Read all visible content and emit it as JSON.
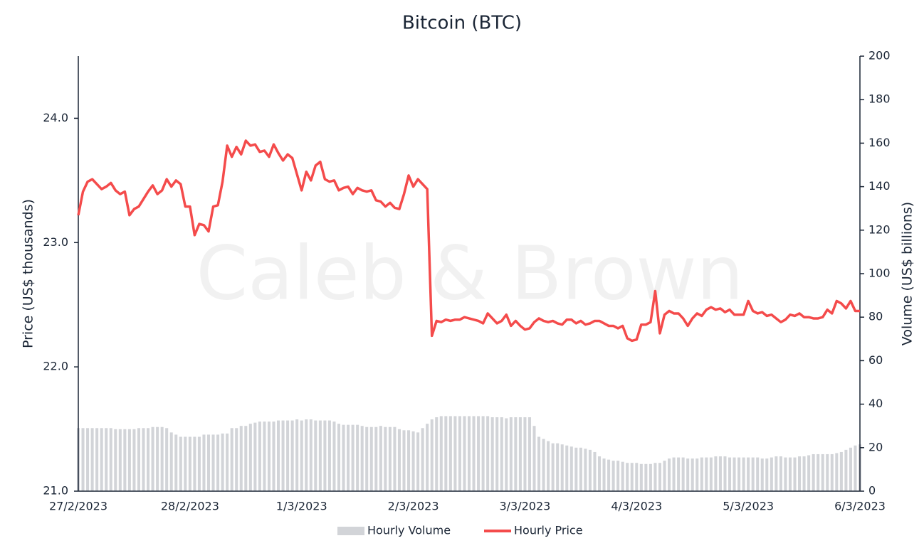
{
  "chart_data": {
    "type": "line",
    "title": "Bitcoin (BTC)",
    "watermark": "Caleb & Brown",
    "y_label": "Price (US$ thousands)",
    "y2_label": "Volume (US$ billions)",
    "ylim": [
      21,
      24.5
    ],
    "yticks": [
      {
        "value": 21,
        "label": "21.0"
      },
      {
        "value": 22,
        "label": "22.0"
      },
      {
        "value": 23,
        "label": "23.0"
      },
      {
        "value": 24,
        "label": "24.0"
      }
    ],
    "y2lim": [
      0,
      200
    ],
    "y2ticks": [
      0,
      20,
      40,
      60,
      80,
      100,
      120,
      140,
      160,
      180,
      200
    ],
    "legend": "bottom",
    "categories": [
      "27/2/2023",
      null,
      null,
      null,
      null,
      null,
      null,
      null,
      null,
      null,
      null,
      null,
      null,
      null,
      null,
      null,
      null,
      null,
      null,
      null,
      null,
      null,
      null,
      null,
      "28/2/2023",
      null,
      null,
      null,
      null,
      null,
      null,
      null,
      null,
      null,
      null,
      null,
      null,
      null,
      null,
      null,
      null,
      null,
      null,
      null,
      null,
      null,
      null,
      null,
      "1/3/2023",
      null,
      null,
      null,
      null,
      null,
      null,
      null,
      null,
      null,
      null,
      null,
      null,
      null,
      null,
      null,
      null,
      null,
      null,
      null,
      null,
      null,
      null,
      null,
      "2/3/2023",
      null,
      null,
      null,
      null,
      null,
      null,
      null,
      null,
      null,
      null,
      null,
      null,
      null,
      null,
      null,
      null,
      null,
      null,
      null,
      null,
      null,
      null,
      null,
      "3/3/2023",
      null,
      null,
      null,
      null,
      null,
      null,
      null,
      null,
      null,
      null,
      null,
      null,
      null,
      null,
      null,
      null,
      null,
      null,
      null,
      null,
      null,
      null,
      null,
      "4/3/2023",
      null,
      null,
      null,
      null,
      null,
      null,
      null,
      null,
      null,
      null,
      null,
      null,
      null,
      null,
      null,
      null,
      null,
      null,
      null,
      null,
      null,
      null,
      null,
      "5/3/2023",
      null,
      null,
      null,
      null,
      null,
      null,
      null,
      null,
      null,
      null,
      null,
      null,
      null,
      null,
      null,
      null,
      null,
      null,
      null,
      null,
      null,
      null,
      null,
      "6/3/2023"
    ],
    "series": [
      {
        "name": "Hourly Volume",
        "type": "bar",
        "axis": "y2",
        "color": "#d2d4d8",
        "values": [
          29,
          29,
          29,
          29,
          29,
          29,
          29,
          29,
          28.5,
          28.5,
          28.5,
          28.5,
          28.5,
          29,
          29,
          29,
          29.5,
          29.5,
          29.5,
          29,
          27,
          26,
          25,
          25,
          25,
          25,
          25,
          26,
          26,
          26,
          26,
          26.5,
          26.5,
          29,
          29,
          30,
          30,
          31,
          31.5,
          32,
          32,
          32,
          32,
          32.5,
          32.5,
          32.5,
          32.5,
          33,
          32.5,
          33,
          33,
          32.5,
          32.5,
          32.5,
          32.5,
          32,
          31,
          30.5,
          30.5,
          30.5,
          30.5,
          30,
          29.5,
          29.5,
          29.5,
          30,
          29.5,
          29.5,
          29.5,
          28.5,
          28,
          28,
          27.5,
          27,
          29,
          31,
          33,
          34,
          34.5,
          34.5,
          34.5,
          34.5,
          34.5,
          34.5,
          34.5,
          34.5,
          34.5,
          34.5,
          34.5,
          34,
          34,
          34,
          33.5,
          34,
          34,
          34,
          34,
          34,
          30,
          25,
          24,
          23,
          22,
          22,
          21.5,
          21,
          20.5,
          20,
          20,
          19.5,
          19,
          18,
          16,
          15,
          14.5,
          14,
          14,
          13.5,
          13,
          13,
          13,
          12.5,
          12.5,
          12.5,
          13,
          13,
          14,
          15,
          15.5,
          15.5,
          15.5,
          15,
          15,
          15,
          15.5,
          15.5,
          15.5,
          16,
          16,
          16,
          15.5,
          15.5,
          15.5,
          15.5,
          15.5,
          15.5,
          15.5,
          15,
          15,
          15.5,
          16,
          16,
          15.5,
          15.5,
          15.5,
          16,
          16,
          16.5,
          17,
          17,
          17,
          17,
          17,
          17.5,
          18,
          19,
          20,
          21,
          21.5
        ]
      },
      {
        "name": "Hourly Price",
        "type": "line",
        "color": "#f44b4b",
        "values": [
          23.22,
          23.41,
          23.49,
          23.51,
          23.47,
          23.43,
          23.45,
          23.48,
          23.42,
          23.39,
          23.41,
          23.22,
          23.27,
          23.29,
          23.35,
          23.41,
          23.46,
          23.39,
          23.42,
          23.51,
          23.45,
          23.5,
          23.47,
          23.29,
          23.29,
          23.06,
          23.15,
          23.14,
          23.09,
          23.29,
          23.3,
          23.49,
          23.78,
          23.69,
          23.77,
          23.71,
          23.82,
          23.78,
          23.79,
          23.73,
          23.74,
          23.69,
          23.79,
          23.72,
          23.66,
          23.71,
          23.68,
          23.55,
          23.42,
          23.57,
          23.5,
          23.62,
          23.65,
          23.51,
          23.49,
          23.5,
          23.42,
          23.44,
          23.45,
          23.39,
          23.44,
          23.42,
          23.41,
          23.42,
          23.34,
          23.33,
          23.29,
          23.32,
          23.28,
          23.27,
          23.39,
          23.54,
          23.45,
          23.51,
          23.47,
          23.43,
          22.25,
          22.37,
          22.36,
          22.38,
          22.37,
          22.38,
          22.38,
          22.4,
          22.39,
          22.38,
          22.37,
          22.35,
          22.43,
          22.39,
          22.35,
          22.37,
          22.42,
          22.33,
          22.37,
          22.33,
          22.3,
          22.31,
          22.36,
          22.39,
          22.37,
          22.36,
          22.37,
          22.35,
          22.34,
          22.38,
          22.38,
          22.35,
          22.37,
          22.34,
          22.35,
          22.37,
          22.37,
          22.35,
          22.33,
          22.33,
          22.31,
          22.33,
          22.23,
          22.21,
          22.22,
          22.34,
          22.34,
          22.36,
          22.61,
          22.27,
          22.42,
          22.45,
          22.43,
          22.43,
          22.39,
          22.33,
          22.39,
          22.43,
          22.41,
          22.46,
          22.48,
          22.46,
          22.47,
          22.44,
          22.46,
          22.42,
          22.42,
          22.42,
          22.53,
          22.45,
          22.43,
          22.44,
          22.41,
          22.42,
          22.39,
          22.36,
          22.38,
          22.42,
          22.41,
          22.43,
          22.4,
          22.4,
          22.39,
          22.39,
          22.4,
          22.46,
          22.43,
          22.53,
          22.51,
          22.47,
          22.53,
          22.45,
          22.45
        ]
      }
    ]
  }
}
